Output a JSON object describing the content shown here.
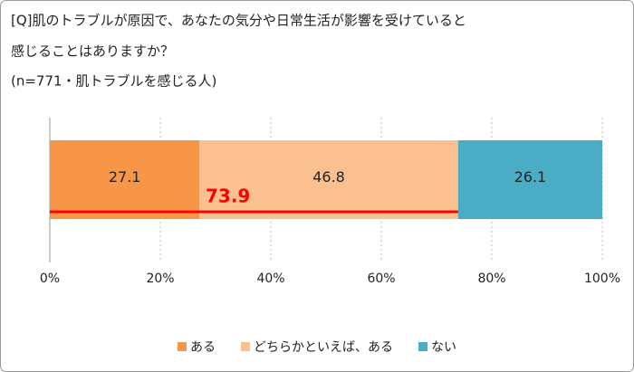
{
  "chart_data": {
    "type": "stacked_barh",
    "title": [
      "[Q]肌のトラブルが原因で、あなたの気分や日常生活が影響を受けていると",
      "感じることはありますか？"
    ],
    "subtitle": "(n=771・肌トラブルを感じる人)",
    "series": [
      {
        "name": "ある",
        "color": "#f79646",
        "values": [
          27.1
        ]
      },
      {
        "name": "どちらかといえば、ある",
        "color": "#fac090",
        "values": [
          46.8
        ]
      },
      {
        "name": "ない",
        "color": "#4bacc6",
        "values": [
          26.1
        ]
      }
    ],
    "xlim": [
      0,
      100
    ],
    "xticks": [
      {
        "value": 0,
        "label": "0%"
      },
      {
        "value": 20,
        "label": "20%"
      },
      {
        "value": 40,
        "label": "40%"
      },
      {
        "value": 60,
        "label": "60%"
      },
      {
        "value": 80,
        "label": "80%"
      },
      {
        "value": 100,
        "label": "100%"
      }
    ],
    "grid": true,
    "legend": "bottom",
    "annotation": {
      "value": 73.9,
      "label": "73.9",
      "color": "#ff0000"
    }
  }
}
